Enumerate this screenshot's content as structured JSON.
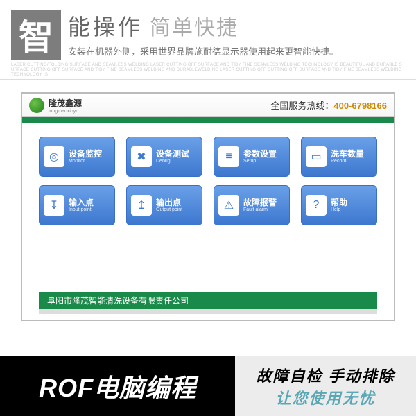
{
  "header": {
    "big_char": "智",
    "title_cn": "能操作",
    "title_light": "简单快捷",
    "subtitle": "安装在机器外侧，采用世界品牌施耐德显示器使用起来更智能快捷。",
    "faint_text": "LASER CUTTING/FOLDING SURFACE AND SEAMLESS WELDING LASER CUTTING OFF SURFACE AND TIDY FINE SEAMLESS WELDING TECHNOLOGY IS BEAUTIFUL AND DURABLE SURFACE CUTTING OFF SURFACE AND TIDY FINE SEAMLESS WELDING AND DURABLEWELDING LASER CUTTING OFF CUTTING OFF SURFACE AND TIDY FINE SEAMLESS WELDING TECHNOLOGY IS"
  },
  "screen": {
    "brand": "隆茂鑫源",
    "brand_sub": "longmaoxinyn",
    "hotline_label": "全国服务热线：",
    "hotline_num": "400-6798166",
    "company": "阜阳市隆茂智能清洗设备有限责任公司"
  },
  "buttons": [
    {
      "cn": "设备监控",
      "en": "Monitor",
      "icon": "◎"
    },
    {
      "cn": "设备测试",
      "en": "Debug",
      "icon": "✖"
    },
    {
      "cn": "参数设置",
      "en": "Setup",
      "icon": "≡"
    },
    {
      "cn": "洗车数量",
      "en": "Record",
      "icon": "▭"
    },
    {
      "cn": "输入点",
      "en": "Input point",
      "icon": "↧"
    },
    {
      "cn": "输出点",
      "en": "Output point",
      "icon": "↥"
    },
    {
      "cn": "故障报警",
      "en": "Fault alarm",
      "icon": "⚠"
    },
    {
      "cn": "帮助",
      "en": "Help",
      "icon": "?"
    }
  ],
  "banner": {
    "left": "ROF电脑编程",
    "right1": "故障自检 手动排除",
    "right2": "让您使用无忧"
  },
  "colors": {
    "green": "#1a8a4a",
    "blue_top": "#6aa0e8",
    "blue_bot": "#3d78cf",
    "teal": "#5aa7b5"
  }
}
